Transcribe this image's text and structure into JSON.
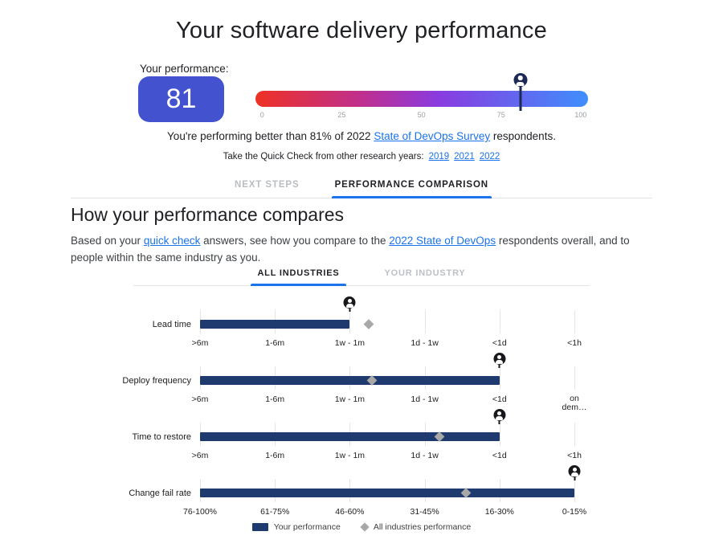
{
  "page": {
    "title": "Your software delivery performance"
  },
  "performance": {
    "label": "Your performance:",
    "score": "81",
    "score_box_color": "#4353cf",
    "slider": {
      "value": 81,
      "tick_labels": [
        "0",
        "25",
        "50",
        "75",
        "100"
      ],
      "gradient": [
        "#ee3124",
        "#8a3be0",
        "#3f8efd"
      ]
    }
  },
  "summary": {
    "text_before_link": "You're performing better than 81% of 2022 ",
    "link_text": "State of DevOps Survey",
    "text_after_link": " respondents."
  },
  "research_years": {
    "label": "Take the Quick Check from other research years:",
    "years": [
      "2019",
      "2021",
      "2022"
    ]
  },
  "tabs": {
    "next_steps": "NEXT STEPS",
    "performance_comparison": "PERFORMANCE COMPARISON"
  },
  "comparison": {
    "heading": "How your performance compares",
    "desc_part1": "Based on your ",
    "desc_link1": "quick check",
    "desc_part2": " answers, see how you compare to the ",
    "desc_link2": "2022 State of DevOps",
    "desc_part3": " respondents overall, and to people within the same industry as you.",
    "subtabs": {
      "all_industries": "ALL INDUSTRIES",
      "your_industry": "YOUR INDUSTRY"
    }
  },
  "chart_data": {
    "type": "bar",
    "orientation": "horizontal",
    "note": "pct values are % across the category axis from first to last tick",
    "metrics": [
      {
        "label": "Lead time",
        "categories": [
          ">6m",
          "1-6m",
          "1w - 1m",
          "1d - 1w",
          "<1d",
          "<1h"
        ],
        "your_performance": "1w - 1m",
        "bar_end_pct": 40,
        "person_marker_pct": 40,
        "all_industries_value_pct": 45
      },
      {
        "label": "Deploy frequency",
        "categories": [
          ">6m",
          "1-6m",
          "1w - 1m",
          "1d - 1w",
          "<1d",
          "on dem…"
        ],
        "your_performance": "<1d",
        "bar_end_pct": 80,
        "person_marker_pct": 80,
        "all_industries_value_pct": 46
      },
      {
        "label": "Time to restore",
        "categories": [
          ">6m",
          "1-6m",
          "1w - 1m",
          "1d - 1w",
          "<1d",
          "<1h"
        ],
        "your_performance": "<1d",
        "bar_end_pct": 80,
        "person_marker_pct": 80,
        "all_industries_value_pct": 64
      },
      {
        "label": "Change fail rate",
        "categories": [
          "76-100%",
          "61-75%",
          "46-60%",
          "31-45%",
          "16-30%",
          "0-15%"
        ],
        "your_performance": "0-15%",
        "bar_end_pct": 100,
        "person_marker_pct": 100,
        "all_industries_value_pct": 71
      }
    ],
    "legend": [
      {
        "label": "Your performance",
        "marker": "bar",
        "color": "#1e3a6e"
      },
      {
        "label": "All industries performance",
        "marker": "diamond",
        "color": "#a8a8a8"
      }
    ],
    "colors": {
      "accent_blue": "#1a73e8",
      "bar_navy": "#1e3a6e",
      "diamond_gray": "#a8a8a8"
    }
  }
}
